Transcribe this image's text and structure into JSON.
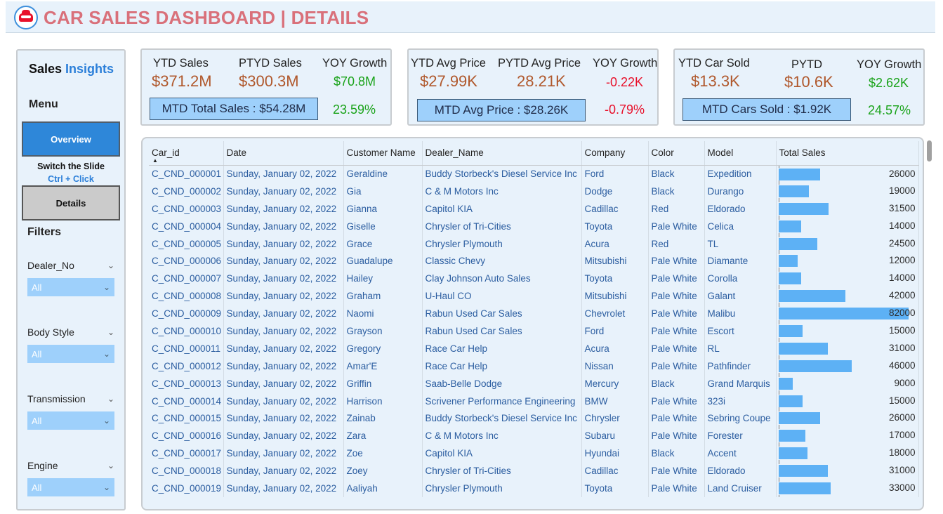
{
  "header": {
    "title": "CAR SALES DASHBOARD | DETAILS"
  },
  "sidebar": {
    "brand_part1": "Sales ",
    "brand_part2": "Insights",
    "menu_title": "Menu",
    "overview_label": "Overview",
    "switch_hint_line1": "Switch the Slide",
    "switch_hint_line2": "Ctrl + Click",
    "details_label": "Details",
    "filters_title": "Filters",
    "filters": [
      {
        "label": "Dealer_No",
        "value": "All"
      },
      {
        "label": "Body Style",
        "value": "All"
      },
      {
        "label": "Transmission",
        "value": "All"
      },
      {
        "label": "Engine",
        "value": "All"
      }
    ]
  },
  "kpis": {
    "sales": {
      "ytd_label": "YTD Sales",
      "ytd_value": "$371.2M",
      "pytd_label": "PTYD Sales",
      "pytd_value": "$300.3M",
      "yoy_label": "YOY Growth",
      "yoy_value": "$70.8M",
      "mtd_label": "MTD Total Sales : $54.28M",
      "mtd_growth": "23.59%"
    },
    "price": {
      "ytd_label": "YTD Avg Price",
      "ytd_value": "$27.99K",
      "pytd_label": "PYTD Avg Price",
      "pytd_value": "28.21K",
      "yoy_label": "YOY Growth",
      "yoy_value": "-0.22K",
      "mtd_label": "MTD Avg Price : $28.26K",
      "mtd_growth": "-0.79%"
    },
    "cars": {
      "ytd_label": "YTD Car Sold",
      "ytd_value": "$13.3K",
      "pytd_label": "PYTD",
      "pytd_value": "$10.6K",
      "yoy_label": "YOY Growth",
      "yoy_value": "$2.62K",
      "mtd_label": "MTD Cars Sold : $1.92K",
      "mtd_growth": "24.57%"
    }
  },
  "table": {
    "columns": [
      "Car_id",
      "Date",
      "Customer Name",
      "Dealer_Name",
      "Company",
      "Color",
      "Model",
      "Total Sales"
    ],
    "max_sales": 82000,
    "rows": [
      [
        "C_CND_000001",
        "Sunday, January 02, 2022",
        "Geraldine",
        "Buddy Storbeck's Diesel Service Inc",
        "Ford",
        "Black",
        "Expedition",
        26000
      ],
      [
        "C_CND_000002",
        "Sunday, January 02, 2022",
        "Gia",
        "C & M Motors Inc",
        "Dodge",
        "Black",
        "Durango",
        19000
      ],
      [
        "C_CND_000003",
        "Sunday, January 02, 2022",
        "Gianna",
        "Capitol KIA",
        "Cadillac",
        "Red",
        "Eldorado",
        31500
      ],
      [
        "C_CND_000004",
        "Sunday, January 02, 2022",
        "Giselle",
        "Chrysler of Tri-Cities",
        "Toyota",
        "Pale White",
        "Celica",
        14000
      ],
      [
        "C_CND_000005",
        "Sunday, January 02, 2022",
        "Grace",
        "Chrysler Plymouth",
        "Acura",
        "Red",
        "TL",
        24500
      ],
      [
        "C_CND_000006",
        "Sunday, January 02, 2022",
        "Guadalupe",
        "Classic Chevy",
        "Mitsubishi",
        "Pale White",
        "Diamante",
        12000
      ],
      [
        "C_CND_000007",
        "Sunday, January 02, 2022",
        "Hailey",
        "Clay Johnson Auto Sales",
        "Toyota",
        "Pale White",
        "Corolla",
        14000
      ],
      [
        "C_CND_000008",
        "Sunday, January 02, 2022",
        "Graham",
        "U-Haul CO",
        "Mitsubishi",
        "Pale White",
        "Galant",
        42000
      ],
      [
        "C_CND_000009",
        "Sunday, January 02, 2022",
        "Naomi",
        "Rabun Used Car Sales",
        "Chevrolet",
        "Pale White",
        "Malibu",
        82000
      ],
      [
        "C_CND_000010",
        "Sunday, January 02, 2022",
        "Grayson",
        "Rabun Used Car Sales",
        "Ford",
        "Pale White",
        "Escort",
        15000
      ],
      [
        "C_CND_000011",
        "Sunday, January 02, 2022",
        "Gregory",
        "Race Car Help",
        "Acura",
        "Pale White",
        "RL",
        31000
      ],
      [
        "C_CND_000012",
        "Sunday, January 02, 2022",
        "Amar'E",
        "Race Car Help",
        "Nissan",
        "Pale White",
        "Pathfinder",
        46000
      ],
      [
        "C_CND_000013",
        "Sunday, January 02, 2022",
        "Griffin",
        "Saab-Belle Dodge",
        "Mercury",
        "Black",
        "Grand Marquis",
        9000
      ],
      [
        "C_CND_000014",
        "Sunday, January 02, 2022",
        "Harrison",
        "Scrivener Performance Engineering",
        "BMW",
        "Pale White",
        "323i",
        15000
      ],
      [
        "C_CND_000015",
        "Sunday, January 02, 2022",
        "Zainab",
        "Buddy Storbeck's Diesel Service Inc",
        "Chrysler",
        "Pale White",
        "Sebring Coupe",
        26000
      ],
      [
        "C_CND_000016",
        "Sunday, January 02, 2022",
        "Zara",
        "C & M Motors Inc",
        "Subaru",
        "Pale White",
        "Forester",
        17000
      ],
      [
        "C_CND_000017",
        "Sunday, January 02, 2022",
        "Zoe",
        "Capitol KIA",
        "Hyundai",
        "Black",
        "Accent",
        18000
      ],
      [
        "C_CND_000018",
        "Sunday, January 02, 2022",
        "Zoey",
        "Chrysler of Tri-Cities",
        "Cadillac",
        "Pale White",
        "Eldorado",
        31000
      ],
      [
        "C_CND_000019",
        "Sunday, January 02, 2022",
        "Aaliyah",
        "Chrysler Plymouth",
        "Toyota",
        "Pale White",
        "Land Cruiser",
        33000
      ]
    ]
  },
  "colors": {
    "title": "#d9707a",
    "accent": "#2b7fd9",
    "panel": "#e8f2fb",
    "bar": "#5db1f5",
    "positive": "#1aa31a",
    "negative": "#e8102a"
  },
  "icons": {
    "logo": "car-icon",
    "dropdown": "chevron-down-icon",
    "sort": "sort-ascending-icon"
  }
}
